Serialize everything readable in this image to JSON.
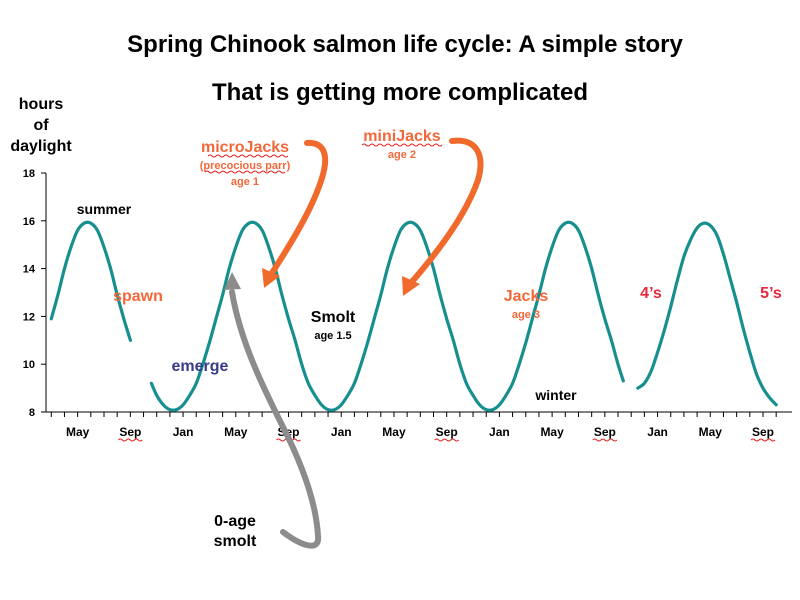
{
  "chart_data": {
    "type": "line",
    "title": "Spring Chinook salmon life cycle: A simple story",
    "subtitle": "That is getting more complicated",
    "ylabel": "hours of daylight",
    "ylabel_lines": [
      "hours",
      "of",
      "daylight"
    ],
    "ylim": [
      8,
      18
    ],
    "yticks": [
      8,
      10,
      12,
      14,
      16,
      18
    ],
    "grid": false,
    "x_start_month": 3,
    "x_end_month": 58,
    "x_tick_labels": [
      {
        "label": "May",
        "month": 5
      },
      {
        "label": "Sep",
        "month": 9
      },
      {
        "label": "Jan",
        "month": 13
      },
      {
        "label": "May",
        "month": 17
      },
      {
        "label": "Sep",
        "month": 21
      },
      {
        "label": "Jan",
        "month": 25
      },
      {
        "label": "May",
        "month": 29
      },
      {
        "label": "Sep",
        "month": 33
      },
      {
        "label": "Jan",
        "month": 37
      },
      {
        "label": "May",
        "month": 41
      },
      {
        "label": "Sep",
        "month": 45
      },
      {
        "label": "Jan",
        "month": 49
      },
      {
        "label": "May",
        "month": 53
      },
      {
        "label": "Sep",
        "month": 57
      }
    ],
    "series": [
      {
        "color": "#178f8f",
        "segments": [
          {
            "x": [
              3,
              3.5,
              4,
              4.5,
              5,
              5.5,
              6,
              6.5,
              7,
              7.5,
              8,
              8.5,
              9
            ],
            "y": [
              11.9,
              12.9,
              14.0,
              14.9,
              15.6,
              15.9,
              15.9,
              15.6,
              14.9,
              14.0,
              12.9,
              11.9,
              11.0
            ]
          },
          {
            "x": [
              10.6,
              11,
              11.5,
              12,
              12.5,
              13,
              13.5,
              14,
              14.5,
              15,
              15.5,
              16,
              16.5,
              17,
              17.5,
              18,
              18.5,
              19,
              19.5,
              20,
              20.5,
              21,
              21.5,
              22,
              22.5,
              23,
              23.5,
              24,
              24.5,
              25,
              25.5,
              26,
              26.5,
              27,
              27.5,
              28,
              28.5,
              29,
              29.5,
              30,
              30.5,
              31,
              31.5,
              32,
              32.5,
              33,
              33.5,
              34,
              34.5,
              35,
              35.5,
              36,
              36.5,
              37,
              37.5,
              38,
              38.5,
              39,
              39.5,
              40,
              40.5,
              41,
              41.5,
              42,
              42.5,
              43,
              43.5,
              44,
              44.5,
              45,
              45.5,
              46,
              46.4
            ],
            "y": [
              9.2,
              8.7,
              8.3,
              8.1,
              8.1,
              8.3,
              8.7,
              9.2,
              10.0,
              10.9,
              11.9,
              12.9,
              14.0,
              14.9,
              15.6,
              15.9,
              15.9,
              15.6,
              14.9,
              14.0,
              12.9,
              11.9,
              11.0,
              10.0,
              9.2,
              8.7,
              8.3,
              8.1,
              8.1,
              8.3,
              8.7,
              9.2,
              10.0,
              10.9,
              11.9,
              12.9,
              14.0,
              14.9,
              15.6,
              15.9,
              15.9,
              15.6,
              14.9,
              14.0,
              12.9,
              11.9,
              11.0,
              10.0,
              9.2,
              8.7,
              8.3,
              8.1,
              8.1,
              8.3,
              8.7,
              9.2,
              10.0,
              10.9,
              11.9,
              12.9,
              14.0,
              14.9,
              15.6,
              15.9,
              15.9,
              15.6,
              14.9,
              14.0,
              12.9,
              11.9,
              11.0,
              10.0,
              9.3
            ]
          },
          {
            "x": [
              47.5,
              48,
              48.5,
              49,
              49.5,
              50,
              50.5,
              51,
              51.5,
              52,
              52.5,
              53,
              53.5,
              54,
              54.5,
              55,
              55.5,
              56,
              56.5,
              57,
              57.5,
              58
            ],
            "y": [
              9.0,
              9.2,
              9.7,
              10.5,
              11.4,
              12.4,
              13.5,
              14.5,
              15.2,
              15.7,
              15.9,
              15.8,
              15.4,
              14.6,
              13.6,
              12.6,
              11.5,
              10.5,
              9.6,
              9.0,
              8.6,
              8.3
            ]
          }
        ]
      }
    ],
    "annotations": [
      {
        "id": "summer",
        "text": "summer",
        "color": "#000000"
      },
      {
        "id": "spawn",
        "text": "spawn",
        "color": "#f2683a"
      },
      {
        "id": "emerge",
        "text": "emerge",
        "color": "#3a3a8a"
      },
      {
        "id": "microjacks",
        "text": "microJacks",
        "color": "#f2683a"
      },
      {
        "id": "precocious",
        "text": "(precocious parr)",
        "color": "#f2683a"
      },
      {
        "id": "age1",
        "text": "age 1",
        "color": "#f2683a"
      },
      {
        "id": "minijacks",
        "text": "miniJacks",
        "color": "#f2683a"
      },
      {
        "id": "age2",
        "text": "age 2",
        "color": "#f2683a"
      },
      {
        "id": "smolt",
        "text": "Smolt",
        "color": "#000000"
      },
      {
        "id": "age15",
        "text": "age 1.5",
        "color": "#000000"
      },
      {
        "id": "jacks",
        "text": "Jacks",
        "color": "#f2683a"
      },
      {
        "id": "age3",
        "text": "age 3",
        "color": "#f2683a"
      },
      {
        "id": "winter",
        "text": "winter",
        "color": "#000000"
      },
      {
        "id": "fours",
        "text": "4’s",
        "color": "#e8283c"
      },
      {
        "id": "fives",
        "text": "5’s",
        "color": "#e8283c"
      },
      {
        "id": "zeroage1",
        "text": "0-age",
        "color": "#000000"
      },
      {
        "id": "zeroage2",
        "text": "smolt",
        "color": "#000000"
      }
    ],
    "arrow_colors": {
      "orange": "#f06a2c",
      "gray": "#8c8c8c"
    }
  }
}
